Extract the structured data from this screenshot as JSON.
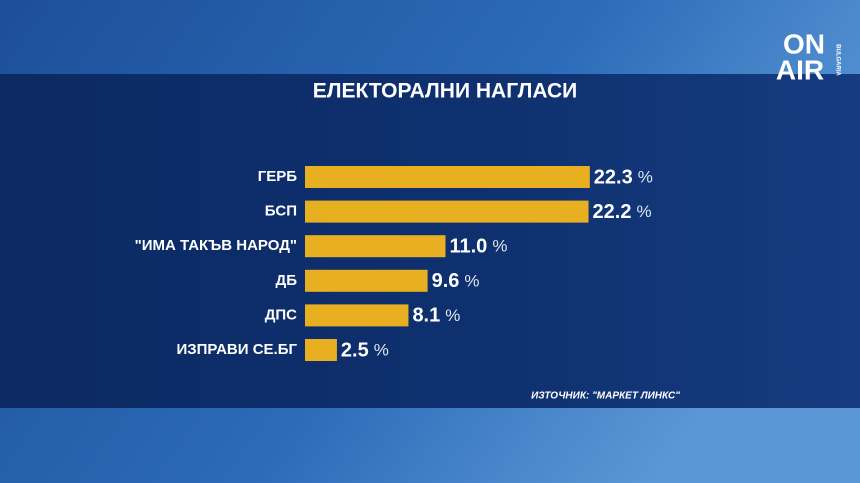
{
  "chart_data": {
    "type": "barh",
    "title": "ЕЛЕКТОРАЛНИ НАГЛАСИ",
    "categories": [
      "ГЕРБ",
      "БСП",
      "\"ИМА ТАКЪВ НАРОД\"",
      "ДБ",
      "ДПС",
      "ИЗПРАВИ СЕ.БГ"
    ],
    "values": [
      22.3,
      22.2,
      11.0,
      9.6,
      8.1,
      2.5
    ],
    "value_labels": [
      "22.3",
      "22.2",
      "11.0",
      "9.6",
      "8.1",
      "2.5"
    ],
    "unit": "%",
    "color": "#e8b021",
    "xlim": [
      0,
      35
    ],
    "source": "ИЗТОЧНИК: \"МАРКЕТ ЛИНКС\""
  },
  "logo": {
    "line1": "ON",
    "line2": "AIR",
    "sub": "BULGARIA"
  }
}
